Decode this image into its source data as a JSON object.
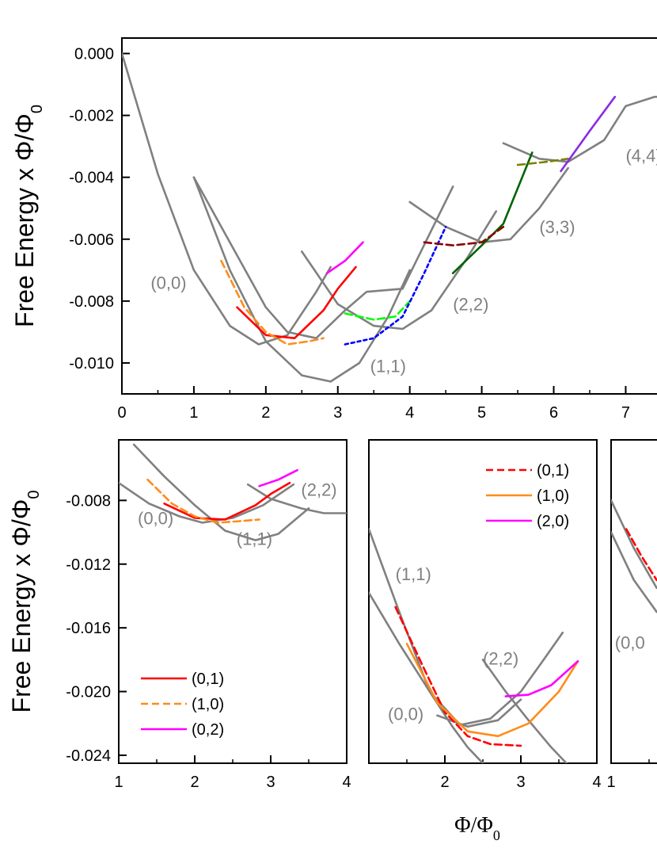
{
  "chart_data": [
    {
      "type": "line",
      "panel": "top",
      "xlim": [
        0,
        7.6
      ],
      "ylim": [
        -0.011,
        0.0005
      ],
      "x_ticks": [
        0,
        1,
        2,
        3,
        4,
        5,
        6,
        7
      ],
      "x_tick_labels": [
        "0",
        "1",
        "2",
        "3",
        "4",
        "5",
        "6",
        "7"
      ],
      "y_ticks": [
        0.0,
        -0.002,
        -0.004,
        -0.006,
        -0.008,
        -0.01
      ],
      "y_tick_labels": [
        "0.000",
        "-0.002",
        "-0.004",
        "-0.006",
        "-0.008",
        "-0.010"
      ],
      "ylabel": "Free Energy x Φ/Φ0",
      "annotations": [
        {
          "text": "(0,0)",
          "x": 0.4,
          "y": -0.0076
        },
        {
          "text": "(1,1)",
          "x": 3.45,
          "y": -0.0103
        },
        {
          "text": "(2,2)",
          "x": 4.6,
          "y": -0.0083
        },
        {
          "text": "(3,3)",
          "x": 5.8,
          "y": -0.0058
        },
        {
          "text": "(4,4)",
          "x": 7.0,
          "y": -0.0035
        }
      ],
      "series": [
        {
          "color": "#808080",
          "dash": "solid",
          "x": [
            0,
            0.5,
            1.0,
            1.5,
            1.9,
            2.3,
            2.7,
            2.9
          ],
          "y": [
            0.0,
            -0.0039,
            -0.007,
            -0.0088,
            -0.0094,
            -0.0091,
            -0.0077,
            -0.0069
          ]
        },
        {
          "color": "#808080",
          "dash": "solid",
          "x": [
            1.0,
            1.5,
            2.0,
            2.5,
            2.9,
            3.3,
            3.7,
            4.0
          ],
          "y": [
            -0.004,
            -0.007,
            -0.0093,
            -0.0104,
            -0.0106,
            -0.01,
            -0.0085,
            -0.007
          ]
        },
        {
          "color": "#808080",
          "dash": "solid",
          "x": [
            2.5,
            3.0,
            3.5,
            3.9,
            4.3,
            4.8,
            5.2
          ],
          "y": [
            -0.0064,
            -0.0081,
            -0.0088,
            -0.0089,
            -0.0083,
            -0.0066,
            -0.0051
          ]
        },
        {
          "color": "#808080",
          "dash": "solid",
          "x": [
            4.0,
            4.5,
            5.0,
            5.4,
            5.8,
            6.2
          ],
          "y": [
            -0.0048,
            -0.0056,
            -0.0061,
            -0.006,
            -0.005,
            -0.0037
          ]
        },
        {
          "color": "#808080",
          "dash": "solid",
          "x": [
            5.3,
            5.8,
            6.2,
            6.7,
            7.0,
            7.4,
            7.6
          ],
          "y": [
            -0.0029,
            -0.0034,
            -0.0035,
            -0.0028,
            -0.0017,
            -0.0014,
            -0.0014
          ]
        },
        {
          "color": "#808080",
          "dash": "solid",
          "x": [
            1.0,
            1.5,
            2.0,
            2.3,
            2.7,
            3.1,
            3.4,
            3.9,
            4.6
          ],
          "y": [
            -0.004,
            -0.0061,
            -0.0082,
            -0.009,
            -0.0092,
            -0.0083,
            -0.0077,
            -0.0076,
            -0.0043
          ]
        },
        {
          "color": "#ff0000",
          "dash": "solid",
          "x": [
            1.6,
            2.0,
            2.4,
            2.8,
            3.0,
            3.25
          ],
          "y": [
            -0.0082,
            -0.0091,
            -0.0092,
            -0.0083,
            -0.0076,
            -0.0069
          ]
        },
        {
          "color": "#ff8c1a",
          "dash": "dash",
          "x": [
            1.38,
            1.7,
            2.0,
            2.3,
            2.6,
            2.8
          ],
          "y": [
            -0.0067,
            -0.0082,
            -0.009,
            -0.0094,
            -0.0093,
            -0.0092
          ]
        },
        {
          "color": "#ff00ff",
          "dash": "solid",
          "x": [
            2.85,
            3.1,
            3.35
          ],
          "y": [
            -0.0071,
            -0.0067,
            -0.0061
          ]
        },
        {
          "color": "#00ff00",
          "dash": "dash",
          "x": [
            3.1,
            3.5,
            3.8,
            4.0
          ],
          "y": [
            -0.0084,
            -0.0086,
            -0.0085,
            -0.008
          ]
        },
        {
          "color": "#0000ff",
          "dash": "dot",
          "x": [
            3.1,
            3.5,
            3.9,
            4.2,
            4.5
          ],
          "y": [
            -0.0094,
            -0.0092,
            -0.0085,
            -0.0071,
            -0.0056
          ]
        },
        {
          "color": "#006400",
          "dash": "solid",
          "x": [
            4.6,
            5.0,
            5.3,
            5.7
          ],
          "y": [
            -0.0071,
            -0.0062,
            -0.0055,
            -0.0032
          ]
        },
        {
          "color": "#8b0000",
          "dash": "dash",
          "x": [
            4.2,
            4.6,
            5.0,
            5.3
          ],
          "y": [
            -0.0061,
            -0.0062,
            -0.0061,
            -0.0056
          ]
        },
        {
          "color": "#808000",
          "dash": "dash",
          "x": [
            5.5,
            5.9,
            6.2
          ],
          "y": [
            -0.0036,
            -0.0035,
            -0.0034
          ]
        },
        {
          "color": "#8a2be2",
          "dash": "solid",
          "x": [
            6.1,
            6.5,
            6.85
          ],
          "y": [
            -0.0038,
            -0.0025,
            -0.0014
          ]
        }
      ]
    },
    {
      "type": "line",
      "panel": "bottom-left",
      "xlim": [
        1,
        4
      ],
      "ylim": [
        -0.0245,
        -0.0042
      ],
      "x_ticks": [
        1,
        2,
        3,
        4
      ],
      "x_tick_labels": [
        "1",
        "2",
        "3",
        "4"
      ],
      "y_ticks": [
        -0.008,
        -0.012,
        -0.016,
        -0.02,
        -0.024
      ],
      "y_tick_labels": [
        "-0.008",
        "-0.012",
        "-0.016",
        "-0.020",
        "-0.024"
      ],
      "ylabel": "Free Energy x Φ/Φ0",
      "legend": {
        "position": "bottom-left",
        "entries": [
          {
            "label": "(0,1)",
            "color": "#ff0000",
            "dash": "solid"
          },
          {
            "label": "(1,0)",
            "color": "#ff8c1a",
            "dash": "dash"
          },
          {
            "label": "(0,2)",
            "color": "#ff00ff",
            "dash": "solid"
          }
        ]
      },
      "annotations": [
        {
          "text": "(0,0)",
          "x": 1.25,
          "y": -0.0095
        },
        {
          "text": "(1,1)",
          "x": 2.55,
          "y": -0.0108
        },
        {
          "text": "(2,2)",
          "x": 3.4,
          "y": -0.0077
        }
      ],
      "series": [
        {
          "color": "#808080",
          "dash": "solid",
          "x": [
            1.0,
            1.4,
            1.8,
            2.1,
            2.5,
            2.9,
            3.3
          ],
          "y": [
            -0.0069,
            -0.0082,
            -0.009,
            -0.0094,
            -0.0091,
            -0.0083,
            -0.007
          ]
        },
        {
          "color": "#808080",
          "dash": "solid",
          "x": [
            1.2,
            1.6,
            2.0,
            2.4,
            2.8,
            3.1,
            3.5
          ],
          "y": [
            -0.0045,
            -0.0065,
            -0.0083,
            -0.0099,
            -0.0105,
            -0.0101,
            -0.0085
          ]
        },
        {
          "color": "#808080",
          "dash": "solid",
          "x": [
            2.7,
            3.0,
            3.4,
            3.7,
            4.0
          ],
          "y": [
            -0.007,
            -0.0079,
            -0.0085,
            -0.0088,
            -0.0088
          ]
        },
        {
          "color": "#ff0000",
          "dash": "solid",
          "x": [
            1.6,
            2.0,
            2.4,
            2.8,
            3.0,
            3.25
          ],
          "y": [
            -0.0082,
            -0.0091,
            -0.0092,
            -0.0083,
            -0.0076,
            -0.0069
          ]
        },
        {
          "color": "#ff8c1a",
          "dash": "dash",
          "x": [
            1.38,
            1.7,
            2.0,
            2.3,
            2.6,
            2.85
          ],
          "y": [
            -0.0067,
            -0.0082,
            -0.009,
            -0.0094,
            -0.0093,
            -0.0092
          ]
        },
        {
          "color": "#ff00ff",
          "dash": "solid",
          "x": [
            2.85,
            3.1,
            3.35
          ],
          "y": [
            -0.0071,
            -0.0067,
            -0.0061
          ]
        }
      ]
    },
    {
      "type": "line",
      "panel": "bottom-middle",
      "xlim": [
        1,
        4
      ],
      "ylim": [
        -0.0245,
        -0.0042
      ],
      "x_ticks": [
        1,
        2,
        3,
        4
      ],
      "x_tick_labels": [
        "",
        "2",
        "3",
        "4"
      ],
      "legend": {
        "position": "top-right",
        "entries": [
          {
            "label": "(0,1)",
            "color": "#ff0000",
            "dash": "dash"
          },
          {
            "label": "(1,0)",
            "color": "#ff8c1a",
            "dash": "solid"
          },
          {
            "label": "(2,0)",
            "color": "#ff00ff",
            "dash": "solid"
          }
        ]
      },
      "annotations": [
        {
          "text": "(1,1)",
          "x": 1.35,
          "y": -0.013
        },
        {
          "text": "(0,0)",
          "x": 1.25,
          "y": -0.0218
        },
        {
          "text": "(2,2)",
          "x": 2.5,
          "y": -0.0183
        }
      ],
      "series": [
        {
          "color": "#808080",
          "dash": "solid",
          "x": [
            1.0,
            1.4,
            1.8,
            2.1,
            2.3,
            2.5
          ],
          "y": [
            -0.0138,
            -0.017,
            -0.02,
            -0.0222,
            -0.0235,
            -0.0245
          ]
        },
        {
          "color": "#808080",
          "dash": "solid",
          "x": [
            1.0,
            1.4,
            1.8,
            2.2,
            2.6,
            3.0,
            3.3,
            3.55
          ],
          "y": [
            -0.0098,
            -0.015,
            -0.02,
            -0.0221,
            -0.0217,
            -0.02,
            -0.018,
            -0.0163
          ]
        },
        {
          "color": "#808080",
          "dash": "solid",
          "x": [
            2.5,
            2.8,
            3.1,
            3.4,
            3.6
          ],
          "y": [
            -0.018,
            -0.02,
            -0.0218,
            -0.0235,
            -0.0245
          ]
        },
        {
          "color": "#808080",
          "dash": "solid",
          "x": [
            1.9,
            2.3,
            2.7,
            3.0
          ],
          "y": [
            -0.0215,
            -0.0222,
            -0.0218,
            -0.0205
          ]
        },
        {
          "color": "#ff0000",
          "dash": "dash",
          "x": [
            1.35,
            1.7,
            2.0,
            2.3,
            2.6,
            3.0
          ],
          "y": [
            -0.0147,
            -0.0183,
            -0.0213,
            -0.0228,
            -0.0233,
            -0.0234
          ]
        },
        {
          "color": "#ff8c1a",
          "dash": "solid",
          "x": [
            1.5,
            1.9,
            2.3,
            2.7,
            3.1,
            3.5,
            3.75
          ],
          "y": [
            -0.017,
            -0.0207,
            -0.0225,
            -0.0228,
            -0.022,
            -0.02,
            -0.0181
          ]
        },
        {
          "color": "#ff00ff",
          "dash": "solid",
          "x": [
            2.8,
            3.1,
            3.4,
            3.75
          ],
          "y": [
            -0.0203,
            -0.0202,
            -0.0196,
            -0.0181
          ]
        }
      ]
    },
    {
      "type": "line",
      "panel": "bottom-right",
      "xlim": [
        1,
        4
      ],
      "ylim": [
        -0.0245,
        -0.0042
      ],
      "x_ticks": [
        1
      ],
      "x_tick_labels": [
        "1"
      ],
      "annotations": [
        {
          "text": "(0,0",
          "x": 1.05,
          "y": -0.0173
        }
      ],
      "series": [
        {
          "color": "#808080",
          "dash": "solid",
          "x": [
            1.0,
            1.3,
            1.6
          ],
          "y": [
            -0.008,
            -0.011,
            -0.0135
          ]
        },
        {
          "color": "#808080",
          "dash": "solid",
          "x": [
            1.0,
            1.3,
            1.6
          ],
          "y": [
            -0.01,
            -0.013,
            -0.015
          ]
        },
        {
          "color": "#ff0000",
          "dash": "dash",
          "x": [
            1.2,
            1.4,
            1.6
          ],
          "y": [
            -0.0098,
            -0.0115,
            -0.013
          ]
        }
      ]
    }
  ],
  "xlabel": "Φ/Φ0"
}
